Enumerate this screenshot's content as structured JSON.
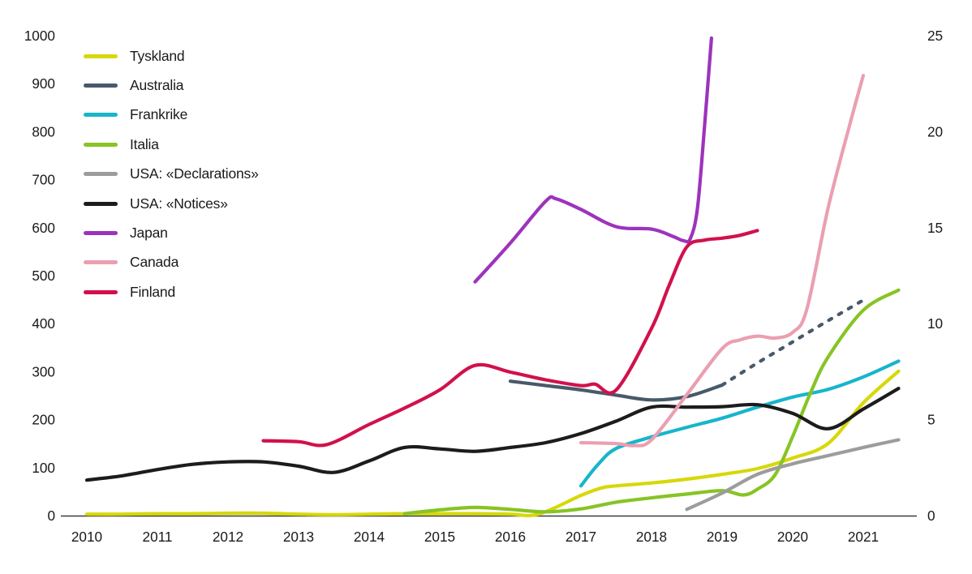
{
  "figure": {
    "background": "#ffffff",
    "text_color": "#1a1a1a",
    "axis_line_color": "#3c3c3c"
  },
  "chart_data": {
    "type": "line",
    "title": "",
    "grid": "off",
    "legend_position": "top-left",
    "x_axis": {
      "ticks": [
        "2010",
        "2011",
        "2012",
        "2013",
        "2014",
        "2015",
        "2016",
        "2017",
        "2018",
        "2019",
        "2020",
        "2021"
      ],
      "tick_years": [
        2010,
        2011,
        2012,
        2013,
        2014,
        2015,
        2016,
        2017,
        2018,
        2019,
        2020,
        2021
      ],
      "range_years": [
        2010,
        2021.5
      ]
    },
    "y_axis_left": {
      "ticks": [
        "0",
        "100",
        "200",
        "300",
        "400",
        "500",
        "600",
        "700",
        "800",
        "900",
        "1000"
      ],
      "tick_values": [
        0,
        100,
        200,
        300,
        400,
        500,
        600,
        700,
        800,
        900,
        1000
      ],
      "min": 0,
      "max": 1000
    },
    "y_axis_right": {
      "ticks": [
        "0",
        "5",
        "10",
        "15",
        "20",
        "25"
      ],
      "tick_values": [
        0,
        5,
        10,
        15,
        20,
        25
      ],
      "min": 0,
      "max": 25
    },
    "series": [
      {
        "name": "Tyskland",
        "color": "#d7d809",
        "style": "solid",
        "points": [
          [
            2010,
            3
          ],
          [
            2010.5,
            3
          ],
          [
            2011,
            4
          ],
          [
            2011.5,
            4
          ],
          [
            2012,
            5
          ],
          [
            2012.5,
            5
          ],
          [
            2013,
            3
          ],
          [
            2013.5,
            2
          ],
          [
            2014,
            3
          ],
          [
            2014.5,
            4
          ],
          [
            2015,
            4
          ],
          [
            2015.5,
            4
          ],
          [
            2016,
            3
          ],
          [
            2016.4,
            3
          ],
          [
            2017,
            42
          ],
          [
            2017.3,
            58
          ],
          [
            2017.5,
            62
          ],
          [
            2018,
            68
          ],
          [
            2018.5,
            76
          ],
          [
            2019,
            86
          ],
          [
            2019.5,
            98
          ],
          [
            2020,
            120
          ],
          [
            2020.5,
            150
          ],
          [
            2021,
            235
          ],
          [
            2021.5,
            301
          ]
        ]
      },
      {
        "name": "Australia",
        "color": "#48596b",
        "style": "solid_then_dashed",
        "dashed_from_year": 2019,
        "points": [
          [
            2016,
            280
          ],
          [
            2016.5,
            271
          ],
          [
            2017,
            262
          ],
          [
            2017.5,
            251
          ],
          [
            2018,
            241
          ],
          [
            2018.5,
            248
          ],
          [
            2019,
            272
          ],
          [
            2019.5,
            318
          ],
          [
            2020,
            362
          ],
          [
            2020.5,
            406
          ],
          [
            2021,
            449
          ]
        ]
      },
      {
        "name": "Frankrike",
        "color": "#18b5cb",
        "style": "solid",
        "points": [
          [
            2017,
            62
          ],
          [
            2017.25,
            108
          ],
          [
            2017.5,
            140
          ],
          [
            2018,
            164
          ],
          [
            2018.5,
            184
          ],
          [
            2019,
            203
          ],
          [
            2019.5,
            226
          ],
          [
            2020,
            247
          ],
          [
            2020.5,
            263
          ],
          [
            2021,
            289
          ],
          [
            2021.5,
            322
          ]
        ]
      },
      {
        "name": "Italia",
        "color": "#87c425",
        "style": "solid",
        "points": [
          [
            2014.5,
            4
          ],
          [
            2015,
            12
          ],
          [
            2015.5,
            17
          ],
          [
            2016,
            13
          ],
          [
            2016.5,
            8
          ],
          [
            2017,
            14
          ],
          [
            2017.5,
            28
          ],
          [
            2018,
            37
          ],
          [
            2018.5,
            45
          ],
          [
            2019,
            52
          ],
          [
            2019.3,
            43
          ],
          [
            2019.5,
            55
          ],
          [
            2019.75,
            85
          ],
          [
            2020,
            165
          ],
          [
            2020.25,
            255
          ],
          [
            2020.5,
            330
          ],
          [
            2021,
            428
          ],
          [
            2021.5,
            470
          ]
        ]
      },
      {
        "name": "USA: «Declarations»",
        "color": "#9c9c9c",
        "style": "solid",
        "points": [
          [
            2018.5,
            13
          ],
          [
            2019,
            47
          ],
          [
            2019.5,
            86
          ],
          [
            2020,
            108
          ],
          [
            2020.5,
            125
          ],
          [
            2021,
            142
          ],
          [
            2021.5,
            158
          ]
        ]
      },
      {
        "name": "USA: «Notices»",
        "color": "#1c1c1c",
        "style": "solid",
        "points": [
          [
            2010,
            74
          ],
          [
            2010.5,
            83
          ],
          [
            2011,
            96
          ],
          [
            2011.5,
            107
          ],
          [
            2012,
            112
          ],
          [
            2012.5,
            112
          ],
          [
            2013,
            103
          ],
          [
            2013.5,
            90
          ],
          [
            2014,
            114
          ],
          [
            2014.5,
            142
          ],
          [
            2015,
            139
          ],
          [
            2015.5,
            134
          ],
          [
            2016,
            142
          ],
          [
            2016.5,
            152
          ],
          [
            2017,
            171
          ],
          [
            2017.5,
            197
          ],
          [
            2018,
            226
          ],
          [
            2018.5,
            226
          ],
          [
            2019,
            227
          ],
          [
            2019.5,
            231
          ],
          [
            2020,
            213
          ],
          [
            2020.5,
            181
          ],
          [
            2021,
            222
          ],
          [
            2021.5,
            265
          ]
        ]
      },
      {
        "name": "Japan",
        "color": "#9d33bd",
        "style": "solid",
        "points": [
          [
            2015.5,
            487
          ],
          [
            2016,
            568
          ],
          [
            2016.5,
            655
          ],
          [
            2016.65,
            660
          ],
          [
            2017,
            638
          ],
          [
            2017.5,
            602
          ],
          [
            2018,
            597
          ],
          [
            2018.3,
            582
          ],
          [
            2018.45,
            573
          ],
          [
            2018.55,
            577
          ],
          [
            2018.65,
            640
          ],
          [
            2018.75,
            810
          ],
          [
            2018.85,
            995
          ]
        ]
      },
      {
        "name": "Canada",
        "color": "#eb9fb1",
        "style": "solid",
        "points": [
          [
            2017,
            152
          ],
          [
            2017.5,
            150
          ],
          [
            2017.75,
            146
          ],
          [
            2018,
            158
          ],
          [
            2018.5,
            252
          ],
          [
            2019,
            348
          ],
          [
            2019.25,
            366
          ],
          [
            2019.5,
            374
          ],
          [
            2019.75,
            370
          ],
          [
            2020,
            382
          ],
          [
            2020.2,
            430
          ],
          [
            2020.5,
            640
          ],
          [
            2020.8,
            810
          ],
          [
            2021,
            917
          ]
        ]
      },
      {
        "name": "Finland",
        "color": "#d1114c",
        "style": "solid",
        "points": [
          [
            2012.5,
            156
          ],
          [
            2013,
            154
          ],
          [
            2013.4,
            148
          ],
          [
            2014,
            190
          ],
          [
            2014.5,
            224
          ],
          [
            2015,
            262
          ],
          [
            2015.5,
            313
          ],
          [
            2016,
            299
          ],
          [
            2016.5,
            283
          ],
          [
            2017,
            271
          ],
          [
            2017.2,
            274
          ],
          [
            2017.5,
            262
          ],
          [
            2018,
            390
          ],
          [
            2018.25,
            480
          ],
          [
            2018.5,
            560
          ],
          [
            2018.75,
            574
          ],
          [
            2019,
            578
          ],
          [
            2019.25,
            584
          ],
          [
            2019.5,
            594
          ]
        ]
      }
    ]
  }
}
